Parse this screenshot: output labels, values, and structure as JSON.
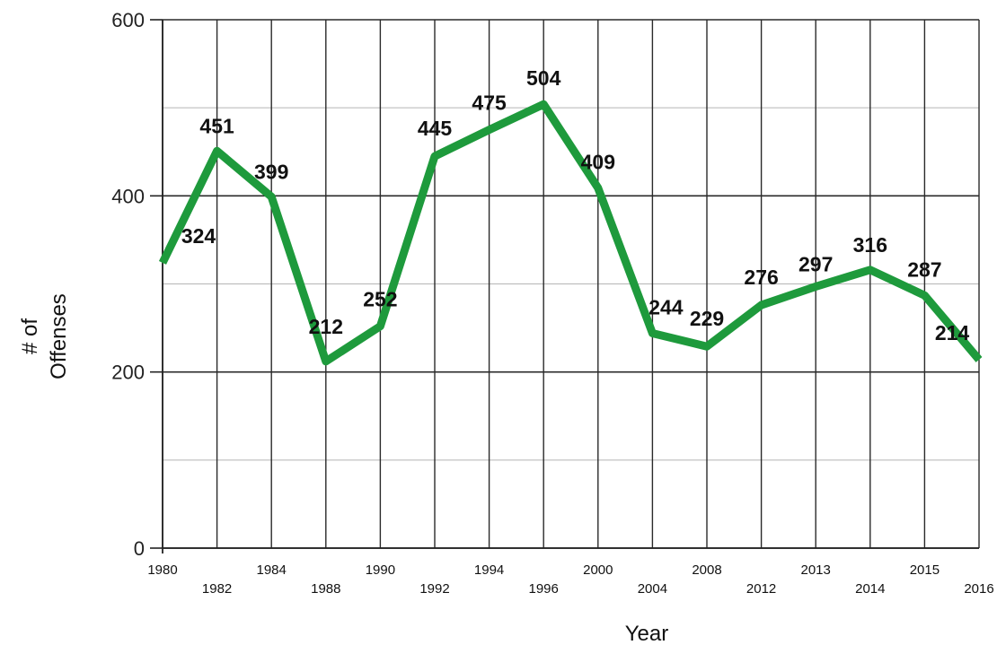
{
  "chart_data": {
    "type": "line",
    "xlabel": "Year",
    "ylabel_lines": [
      "# of",
      "Offenses"
    ],
    "ylim": [
      0,
      600
    ],
    "yticks": [
      0,
      200,
      400,
      600
    ],
    "grid": "major and minor horizontal, vertical at each year",
    "line_color": "#1e9a3c",
    "categories": [
      "1980",
      "1982",
      "1984",
      "1988",
      "1990",
      "1992",
      "1994",
      "1996",
      "2000",
      "2004",
      "2008",
      "2012",
      "2013",
      "2014",
      "2015",
      "2016"
    ],
    "values": [
      324,
      451,
      399,
      212,
      252,
      445,
      475,
      504,
      409,
      244,
      229,
      276,
      297,
      316,
      287,
      214
    ],
    "data_labels": [
      "324",
      "451",
      "399",
      "212",
      "252",
      "445",
      "475",
      "504",
      "409",
      "244",
      "229",
      "276",
      "297",
      "316",
      "287",
      "214"
    ]
  }
}
